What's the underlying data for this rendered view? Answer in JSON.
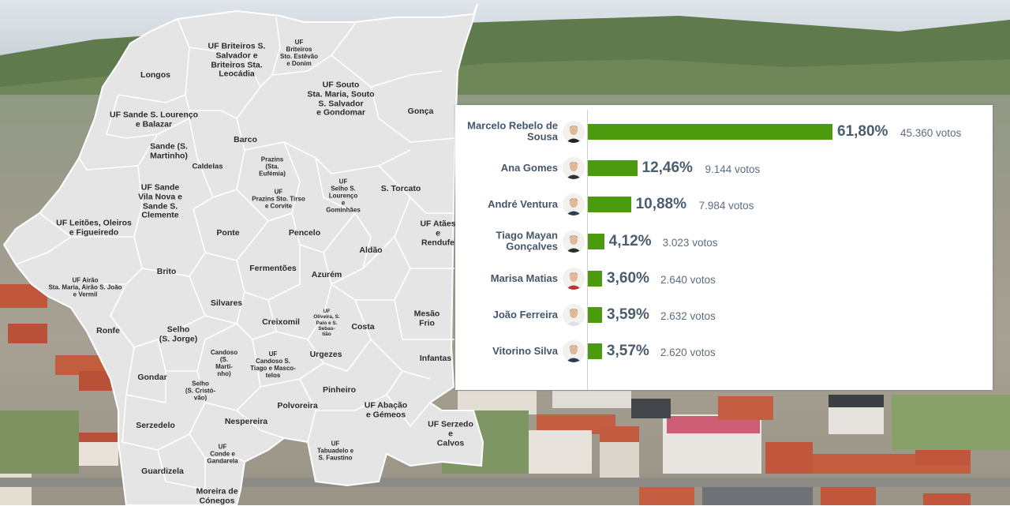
{
  "map": {
    "regions": [
      {
        "label": "Longos",
        "size": "l"
      },
      {
        "label": "UF Briteiros S.\nSalvador e\nBriteiros Sta.\nLeocádia",
        "size": "l"
      },
      {
        "label": "UF\nBriteiros\nSto. Estêvão\ne Donim",
        "size": "s"
      },
      {
        "label": "UF Souto\nSta. Maria, Souto\nS. Salvador\ne Gondomar",
        "size": "l"
      },
      {
        "label": "Gonça",
        "size": "l"
      },
      {
        "label": "UF Sande S. Lourenço\ne Balazar",
        "size": "l"
      },
      {
        "label": "Barco",
        "size": "l"
      },
      {
        "label": "Sande (S.\nMartinho)",
        "size": "l"
      },
      {
        "label": "Caldelas",
        "size": "m"
      },
      {
        "label": "Prazins\n(Sta.\nEufémia)",
        "size": "s"
      },
      {
        "label": "UF\nSelho S.\nLourenço\ne\nGominhães",
        "size": "s"
      },
      {
        "label": "S. Torcato",
        "size": "l"
      },
      {
        "label": "UF Sande\nVila Nova e\nSande S.\nClemente",
        "size": "l"
      },
      {
        "label": "UF\nPrazins Sto. Tirso\ne Corvite",
        "size": "s"
      },
      {
        "label": "UF Leitões, Oleiros\ne Figueiredo",
        "size": "l"
      },
      {
        "label": "Ponte",
        "size": "l"
      },
      {
        "label": "Pencelo",
        "size": "l"
      },
      {
        "label": "UF Atães\ne\nRendufe",
        "size": "l"
      },
      {
        "label": "Aldão",
        "size": "l"
      },
      {
        "label": "Fermentões",
        "size": "l"
      },
      {
        "label": "Brito",
        "size": "l"
      },
      {
        "label": "Azurém",
        "size": "l"
      },
      {
        "label": "UF Airão\nSta. Maria, Airão S. João\ne Vermil",
        "size": "s"
      },
      {
        "label": "Silvares",
        "size": "l"
      },
      {
        "label": "UF\nOliveira, S.\nPaio e S.\nSebas-\ntião",
        "size": "xs"
      },
      {
        "label": "Mesão\nFrio",
        "size": "l"
      },
      {
        "label": "Creixomil",
        "size": "l"
      },
      {
        "label": "Costa",
        "size": "l"
      },
      {
        "label": "Ronfe",
        "size": "l"
      },
      {
        "label": "Selho\n(S. Jorge)",
        "size": "l"
      },
      {
        "label": "Candoso\n(S.\nMarti-\nnho)",
        "size": "s"
      },
      {
        "label": "UF\nCandoso S.\nTiago e Masco-\ntelos",
        "size": "s"
      },
      {
        "label": "Urgezes",
        "size": "l"
      },
      {
        "label": "Infantas",
        "size": "l"
      },
      {
        "label": "Gondar",
        "size": "l"
      },
      {
        "label": "Selho\n(S. Cristó-\nvão)",
        "size": "s"
      },
      {
        "label": "Pinheiro",
        "size": "l"
      },
      {
        "label": "Polvoreira",
        "size": "l"
      },
      {
        "label": "UF Abação\ne Gémeos",
        "size": "l"
      },
      {
        "label": "Nespereira",
        "size": "l"
      },
      {
        "label": "Serzedelo",
        "size": "l"
      },
      {
        "label": "UF Serzedo\ne\nCalvos",
        "size": "l"
      },
      {
        "label": "UF\nConde e\nGandarela",
        "size": "s"
      },
      {
        "label": "UF\nTabuadelo e\nS. Faustino",
        "size": "s"
      },
      {
        "label": "Guardizela",
        "size": "l"
      },
      {
        "label": "Moreira de\nCónegos",
        "size": "l"
      }
    ]
  },
  "chart_data": {
    "type": "bar",
    "orientation": "horizontal",
    "categories": [
      "Marcelo Rebelo de Sousa",
      "Ana Gomes",
      "André Ventura",
      "Tiago Mayan Gonçalves",
      "Marisa Matias",
      "João Ferreira",
      "Vitorino Silva"
    ],
    "values": [
      61.8,
      12.46,
      10.88,
      4.12,
      3.6,
      3.59,
      3.57
    ],
    "value_labels": [
      "61,80%",
      "12,46%",
      "10,88%",
      "4,12%",
      "3,60%",
      "3,59%",
      "3,57%"
    ],
    "votes": [
      45360,
      9144,
      7984,
      3023,
      2640,
      2632,
      2620
    ],
    "vote_labels": [
      "45.360 votos",
      "9.144 votos",
      "7.984 votos",
      "3.023 votos",
      "2.640 votos",
      "2.632 votos",
      "2.620 votos"
    ],
    "display_names": [
      "Marcelo Rebelo de\nSousa",
      "Ana Gomes",
      "André Ventura",
      "Tiago Mayan\nGonçalves",
      "Marisa Matias",
      "João Ferreira",
      "Vitorino Silva"
    ],
    "xlim": [
      0,
      61.8
    ],
    "bar_color": "#4c9a0e",
    "grid": false,
    "legend": "none"
  },
  "colors": {
    "map_fill": "#e5e5e5",
    "map_border": "#ffffff",
    "label_text": "#2b2b2b",
    "name_text": "#44566a",
    "value_text": "#4a5d6f"
  },
  "icons": [
    "candidate-portrait-icon"
  ]
}
